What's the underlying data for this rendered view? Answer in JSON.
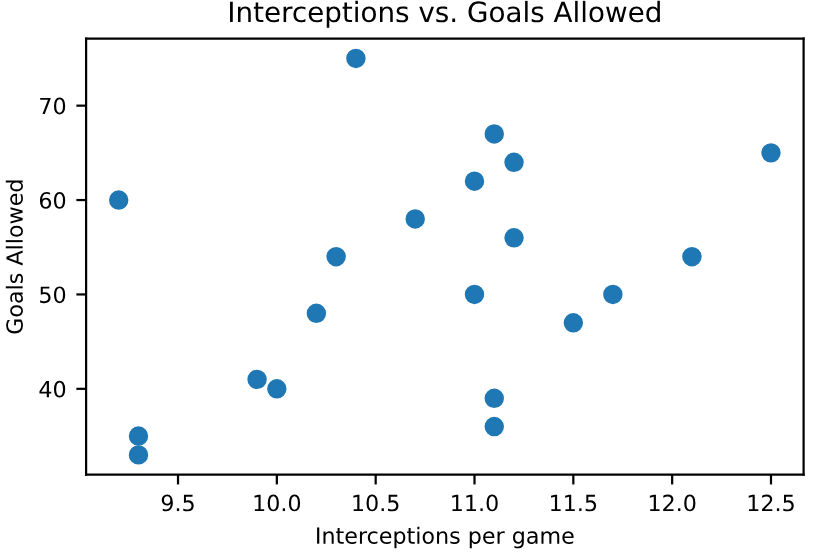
{
  "chart_data": {
    "type": "scatter",
    "title": "Interceptions vs. Goals Allowed",
    "xlabel": "Interceptions per game",
    "ylabel": "Goals Allowed",
    "x": [
      9.2,
      10.4,
      11.1,
      11.2,
      11.0,
      12.5,
      10.7,
      11.2,
      10.3,
      12.1,
      11.0,
      11.7,
      10.2,
      11.5,
      9.9,
      10.0,
      11.1,
      11.1,
      9.3,
      9.3
    ],
    "values": [
      60,
      75,
      67,
      64,
      62,
      65,
      58,
      56,
      54,
      54,
      50,
      50,
      48,
      47,
      41,
      40,
      39,
      36,
      35,
      33
    ],
    "color": "#1f77b4",
    "marker": "circle",
    "grid": false,
    "legend": false,
    "xlim": [
      9.035,
      12.665
    ],
    "ylim": [
      30.9,
      77.1
    ],
    "xticks": [
      {
        "value": 9.5,
        "label": "9.5"
      },
      {
        "value": 10.0,
        "label": "10.0"
      },
      {
        "value": 10.5,
        "label": "10.5"
      },
      {
        "value": 11.0,
        "label": "11.0"
      },
      {
        "value": 11.5,
        "label": "11.5"
      },
      {
        "value": 12.0,
        "label": "12.0"
      },
      {
        "value": 12.5,
        "label": "12.5"
      }
    ],
    "yticks": [
      40,
      50,
      60,
      70
    ]
  }
}
